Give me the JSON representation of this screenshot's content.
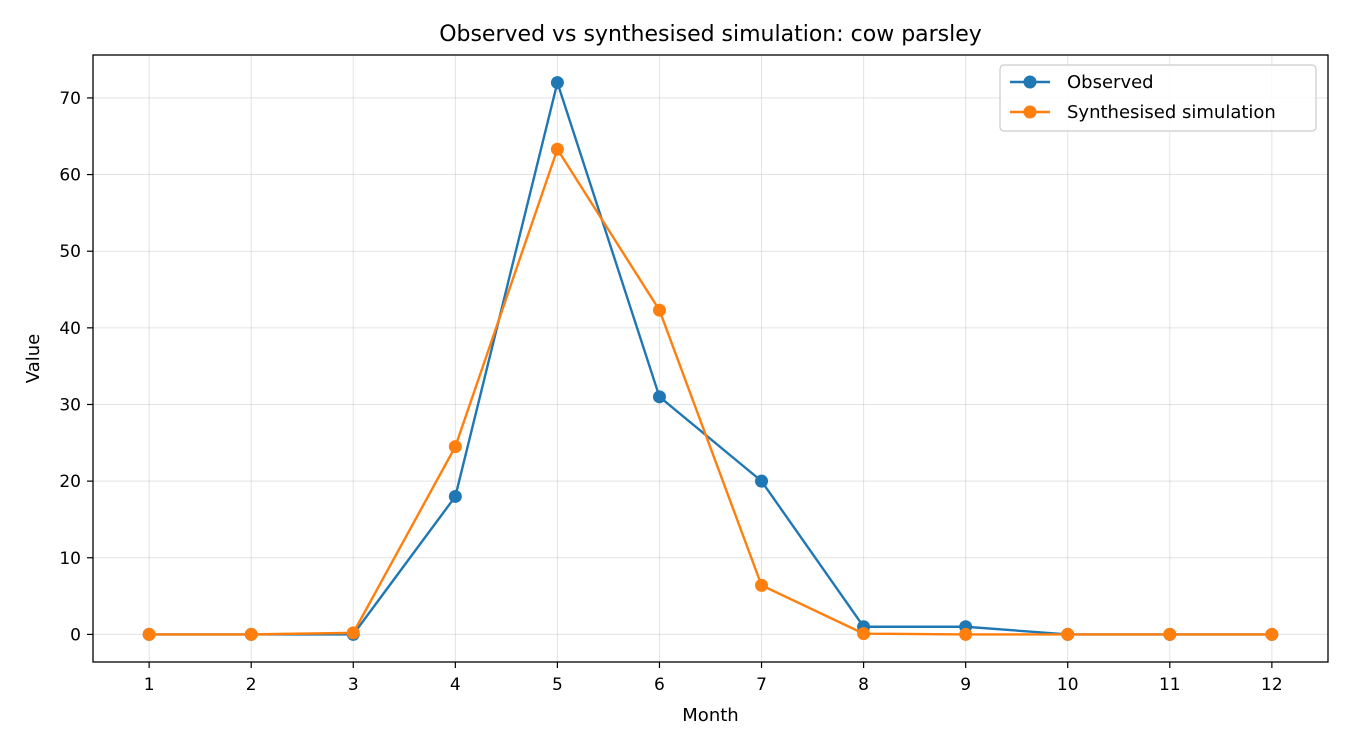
{
  "chart_data": {
    "type": "line",
    "title": "Observed vs synthesised simulation: cow parsley",
    "xlabel": "Month",
    "ylabel": "Value",
    "x": [
      1,
      2,
      3,
      4,
      5,
      6,
      7,
      8,
      9,
      10,
      11,
      12
    ],
    "xlim": [
      0.45,
      12.55
    ],
    "ylim": [
      -3.6,
      75.6
    ],
    "yticks": [
      0,
      10,
      20,
      30,
      40,
      50,
      60,
      70
    ],
    "grid": true,
    "legend_position": "top-right",
    "series": [
      {
        "name": "Observed",
        "color": "#1f77b4",
        "values": [
          0,
          0,
          0,
          18,
          72,
          31,
          20,
          1,
          1,
          0,
          0,
          0
        ]
      },
      {
        "name": "Synthesised simulation",
        "color": "#ff7f0e",
        "values": [
          0,
          0,
          0.2,
          24.5,
          63.3,
          42.3,
          6.4,
          0.1,
          0,
          0,
          0,
          0
        ]
      }
    ]
  }
}
